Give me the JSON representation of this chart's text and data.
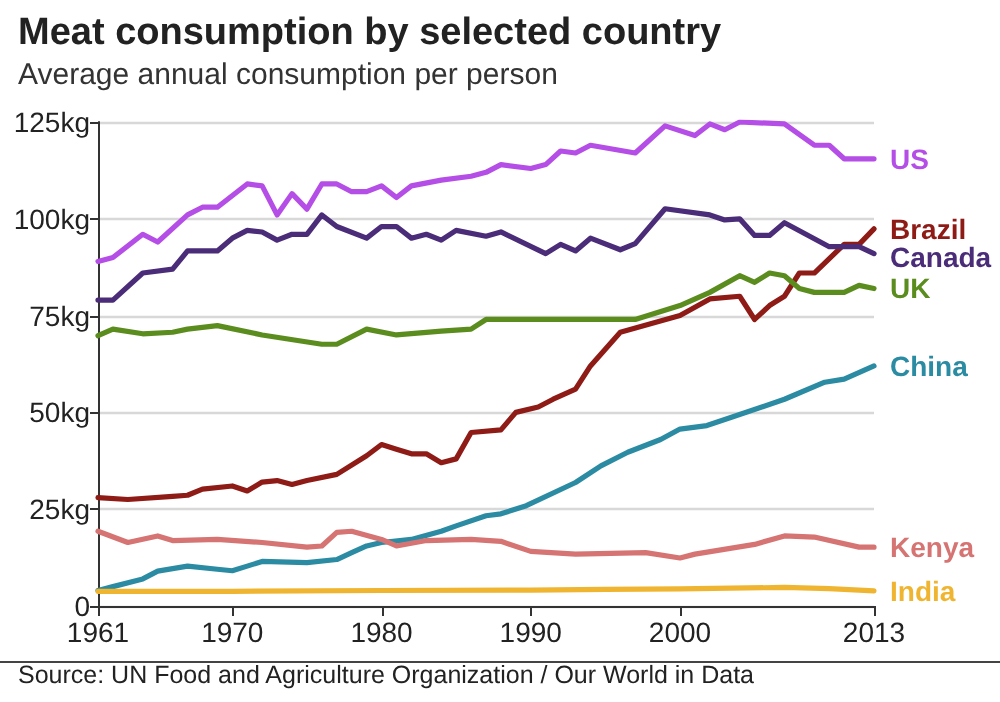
{
  "chart_data": {
    "type": "line",
    "title": "Meat consumption by selected country",
    "subtitle": "Average annual consumption per person",
    "xlim": [
      1961,
      2013
    ],
    "xticks": [
      1961,
      1970,
      1980,
      1990,
      2000,
      2013
    ],
    "ylim": [
      0,
      125
    ],
    "yticks": [
      0,
      {
        "value": 25,
        "label": "25kg"
      },
      {
        "value": 50,
        "label": "50kg"
      },
      {
        "value": 75,
        "label": "75kg"
      },
      {
        "value": 100,
        "label": "100kg"
      },
      {
        "value": 125,
        "label": "125kg"
      }
    ],
    "grid": "y",
    "legend": false,
    "marker": "none",
    "line_style": "solid",
    "annotations": [
      "Source: UN Food and Agriculture Organization / Our World in Data"
    ],
    "series": [
      {
        "name": "US",
        "color": "#b54ee6",
        "x": [
          1961,
          1962,
          1964,
          1965,
          1967,
          1968,
          1969,
          1971,
          1972,
          1973,
          1974,
          1975,
          1976,
          1977,
          1978,
          1979,
          1980,
          1981,
          1982,
          1984,
          1986,
          1987,
          1988,
          1990,
          1991,
          1992,
          1993,
          1994,
          1997,
          1999,
          2001,
          2002,
          2003,
          2004,
          2007,
          2009,
          2010,
          2011,
          2013
        ],
        "values": [
          89,
          90,
          96,
          94,
          101,
          103,
          103,
          109,
          108.5,
          101,
          106.5,
          102.5,
          109,
          109,
          107,
          107,
          108.5,
          105.5,
          108.5,
          110,
          111,
          112,
          114,
          113,
          114,
          117.5,
          117,
          119,
          117,
          124,
          121.5,
          124.5,
          123,
          125,
          124.5,
          119,
          119,
          115.5,
          115.5
        ]
      },
      {
        "name": "Brazil",
        "color": "#8e1b16",
        "x": [
          1961,
          1963,
          1966,
          1967,
          1968,
          1970,
          1971,
          1972,
          1973,
          1974,
          1975,
          1977,
          1979,
          1980,
          1981,
          1982,
          1983,
          1984,
          1985,
          1986,
          1988,
          1989,
          1990.5,
          1991.5,
          1993,
          1994,
          1996,
          2000,
          2002,
          2004,
          2005,
          2006,
          2007,
          2008,
          2009,
          2011,
          2012,
          2013
        ],
        "values": [
          28,
          27.5,
          28.3,
          28.6,
          30.2,
          31,
          29.7,
          32,
          32.4,
          31.4,
          32.4,
          34,
          38.8,
          41.7,
          40.5,
          39.3,
          39.3,
          37,
          38,
          44.8,
          45.5,
          50,
          51.4,
          53.4,
          56,
          62,
          70.7,
          75,
          79.3,
          80,
          74,
          77.6,
          80,
          86,
          86,
          93.4,
          93.4,
          97.4
        ]
      },
      {
        "name": "Canada",
        "color": "#4a2c78",
        "x": [
          1961,
          1962,
          1964,
          1966,
          1967,
          1969,
          1970,
          1971,
          1972,
          1973,
          1974,
          1975,
          1976,
          1977,
          1979,
          1980,
          1981,
          1982,
          1983,
          1984,
          1985,
          1987,
          1988,
          1991,
          1992,
          1993,
          1994,
          1996,
          1997,
          1999,
          2002,
          2003,
          2004,
          2005,
          2006,
          2007,
          2010,
          2012,
          2013
        ],
        "values": [
          79,
          79,
          86,
          87,
          91.7,
          91.7,
          95,
          97,
          96.6,
          94.5,
          96,
          96,
          101,
          98,
          95,
          98,
          98,
          95,
          96,
          94.5,
          97,
          95.5,
          96.6,
          91,
          93.4,
          91.7,
          95,
          92,
          93.6,
          102.6,
          101,
          99.7,
          100,
          95.7,
          95.7,
          99,
          92.8,
          92.8,
          91
        ]
      },
      {
        "name": "UK",
        "color": "#5b8c1e",
        "x": [
          1961,
          1962,
          1964,
          1966,
          1967,
          1969,
          1972,
          1976,
          1977,
          1979,
          1981,
          1984,
          1986,
          1987,
          1989,
          1994,
          1997,
          2000,
          2002,
          2004,
          2005,
          2006,
          2007,
          2008,
          2009,
          2011,
          2012,
          2013
        ],
        "values": [
          69.8,
          71.5,
          70.3,
          70.7,
          71.5,
          72.4,
          70,
          67.6,
          67.6,
          71.5,
          70,
          71,
          71.5,
          74,
          74,
          74,
          74,
          77.6,
          81,
          85.3,
          83.6,
          86,
          85.3,
          82,
          81,
          81,
          82.8,
          82
        ]
      },
      {
        "name": "China",
        "color": "#2a8ba3",
        "x": [
          1961,
          1962,
          1964,
          1965,
          1967,
          1969,
          1970,
          1971,
          1972,
          1975,
          1977,
          1978,
          1979,
          1980,
          1982,
          1984,
          1985,
          1987,
          1988,
          1989.7,
          1993,
          1994.7,
          1996.5,
          1998.7,
          2000,
          2001.8,
          2003.5,
          2007,
          2009.7,
          2011,
          2013
        ],
        "values": [
          4,
          5,
          7,
          9,
          10.3,
          9.5,
          9.1,
          10.3,
          11.5,
          11.2,
          12,
          13.8,
          15.5,
          16.4,
          17.2,
          19.3,
          20.7,
          23.3,
          23.8,
          25.9,
          31.9,
          36.2,
          39.7,
          43,
          45.7,
          46.6,
          48.8,
          53.4,
          57.8,
          58.6,
          62
        ]
      },
      {
        "name": "Kenya",
        "color": "#d57472",
        "x": [
          1961,
          1963,
          1965,
          1966,
          1969,
          1972,
          1975,
          1976,
          1977,
          1978,
          1980,
          1981,
          1983,
          1986,
          1988,
          1990,
          1993,
          1997.7,
          2000,
          2001,
          2005,
          2007,
          2009,
          2012,
          2013
        ],
        "values": [
          19.3,
          16.4,
          18.1,
          16.9,
          17.2,
          16.4,
          15.2,
          15.5,
          19,
          19.3,
          17.2,
          15.5,
          16.9,
          17.2,
          16.7,
          14.1,
          13.4,
          13.8,
          12.4,
          13.4,
          15.9,
          18.1,
          17.8,
          15.2,
          15.2
        ]
      },
      {
        "name": "India",
        "color": "#f0b530",
        "x": [
          1961,
          1970,
          1980,
          1990,
          1995,
          2000,
          2007,
          2010,
          2013
        ],
        "values": [
          3.8,
          3.8,
          4,
          4.1,
          4.3,
          4.4,
          4.8,
          4.5,
          3.9
        ]
      }
    ]
  }
}
